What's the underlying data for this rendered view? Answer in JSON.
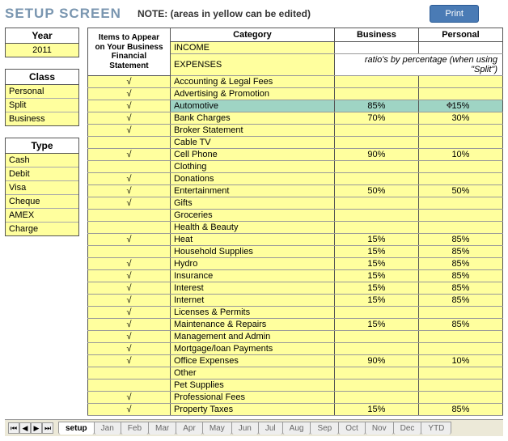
{
  "header": {
    "title": "SETUP SCREEN",
    "note": "NOTE: (areas in yellow can be edited)",
    "print": "Print"
  },
  "year_box": {
    "label": "Year",
    "value": "2011"
  },
  "class_box": {
    "label": "Class",
    "items": [
      "Personal",
      "Split",
      "Business"
    ]
  },
  "type_box": {
    "label": "Type",
    "items": [
      "Cash",
      "Debit",
      "Visa",
      "Cheque",
      "AMEX",
      "Charge"
    ]
  },
  "main": {
    "items_header": [
      "Items to Appear",
      "on Your Business",
      "Financial Statement"
    ],
    "category_header": "Category",
    "business_header": "Business",
    "personal_header": "Personal",
    "income_label": "INCOME",
    "expenses_label": "EXPENSES",
    "ratio_note": "ratio's by percentage (when using \"Split\")",
    "rows": [
      {
        "chk": "√",
        "cat": "Accounting & Legal Fees",
        "bus": "",
        "per": "",
        "sel": false
      },
      {
        "chk": "√",
        "cat": "Advertising & Promotion",
        "bus": "",
        "per": "",
        "sel": false
      },
      {
        "chk": "√",
        "cat": "Automotive",
        "bus": "85%",
        "per": "15%",
        "sel": true
      },
      {
        "chk": "√",
        "cat": "Bank Charges",
        "bus": "70%",
        "per": "30%",
        "sel": false
      },
      {
        "chk": "√",
        "cat": "Broker Statement",
        "bus": "",
        "per": "",
        "sel": false
      },
      {
        "chk": "",
        "cat": "Cable TV",
        "bus": "",
        "per": "",
        "sel": false
      },
      {
        "chk": "√",
        "cat": "Cell Phone",
        "bus": "90%",
        "per": "10%",
        "sel": false
      },
      {
        "chk": "",
        "cat": "Clothing",
        "bus": "",
        "per": "",
        "sel": false
      },
      {
        "chk": "√",
        "cat": "Donations",
        "bus": "",
        "per": "",
        "sel": false
      },
      {
        "chk": "√",
        "cat": "Entertainment",
        "bus": "50%",
        "per": "50%",
        "sel": false
      },
      {
        "chk": "√",
        "cat": "Gifts",
        "bus": "",
        "per": "",
        "sel": false
      },
      {
        "chk": "",
        "cat": "Groceries",
        "bus": "",
        "per": "",
        "sel": false
      },
      {
        "chk": "",
        "cat": "Health & Beauty",
        "bus": "",
        "per": "",
        "sel": false
      },
      {
        "chk": "√",
        "cat": "Heat",
        "bus": "15%",
        "per": "85%",
        "sel": false
      },
      {
        "chk": "",
        "cat": "Household Supplies",
        "bus": "15%",
        "per": "85%",
        "sel": false
      },
      {
        "chk": "√",
        "cat": "Hydro",
        "bus": "15%",
        "per": "85%",
        "sel": false
      },
      {
        "chk": "√",
        "cat": "Insurance",
        "bus": "15%",
        "per": "85%",
        "sel": false
      },
      {
        "chk": "√",
        "cat": "Interest",
        "bus": "15%",
        "per": "85%",
        "sel": false
      },
      {
        "chk": "√",
        "cat": "Internet",
        "bus": "15%",
        "per": "85%",
        "sel": false
      },
      {
        "chk": "√",
        "cat": "Licenses & Permits",
        "bus": "",
        "per": "",
        "sel": false
      },
      {
        "chk": "√",
        "cat": "Maintenance & Repairs",
        "bus": "15%",
        "per": "85%",
        "sel": false
      },
      {
        "chk": "√",
        "cat": "Management and Admin",
        "bus": "",
        "per": "",
        "sel": false
      },
      {
        "chk": "√",
        "cat": "Mortgage/loan Payments",
        "bus": "",
        "per": "",
        "sel": false
      },
      {
        "chk": "√",
        "cat": "Office Expenses",
        "bus": "90%",
        "per": "10%",
        "sel": false
      },
      {
        "chk": "",
        "cat": "Other",
        "bus": "",
        "per": "",
        "sel": false
      },
      {
        "chk": "",
        "cat": "Pet Supplies",
        "bus": "",
        "per": "",
        "sel": false
      },
      {
        "chk": "√",
        "cat": "Professional Fees",
        "bus": "",
        "per": "",
        "sel": false
      },
      {
        "chk": "√",
        "cat": "Property Taxes",
        "bus": "15%",
        "per": "85%",
        "sel": false
      }
    ]
  },
  "tabs": {
    "items": [
      "setup",
      "Jan",
      "Feb",
      "Mar",
      "Apr",
      "May",
      "Jun",
      "Jul",
      "Aug",
      "Sep",
      "Oct",
      "Nov",
      "Dec",
      "YTD"
    ],
    "active": 0
  },
  "colors": {
    "editable_bg": "#ffff9e",
    "selected_bg": "#9fd4c4",
    "title_color": "#7a96b0",
    "button_bg": "#4a7bb5"
  }
}
